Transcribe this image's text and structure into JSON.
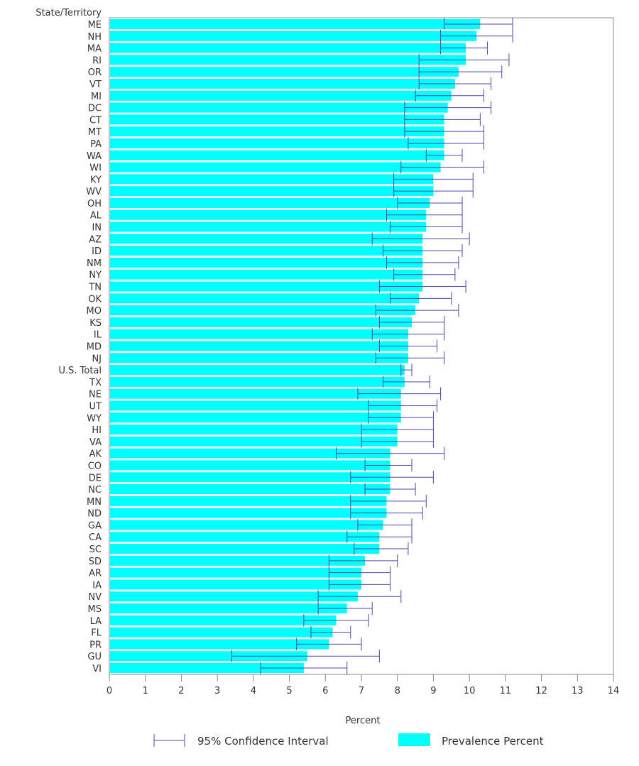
{
  "chart_data": {
    "type": "bar",
    "orientation": "horizontal",
    "category_header": "State/Territory",
    "xlabel": "Percent",
    "xlim": [
      0,
      14
    ],
    "xticks": [
      "0",
      "1",
      "2",
      "3",
      "4",
      "5",
      "6",
      "7",
      "8",
      "9",
      "10",
      "11",
      "12",
      "13",
      "14"
    ],
    "legend": {
      "ci_label": "95% Confidence Interval",
      "bar_label": "Prevalence Percent",
      "placement": "bottom"
    },
    "colors": {
      "bar": "#00ffff",
      "ci": "#4a4aa8",
      "axis": "#888888"
    },
    "categories": [
      "ME",
      "NH",
      "MA",
      "RI",
      "OR",
      "VT",
      "MI",
      "DC",
      "CT",
      "MT",
      "PA",
      "WA",
      "WI",
      "KY",
      "WV",
      "OH",
      "AL",
      "IN",
      "AZ",
      "ID",
      "NM",
      "NY",
      "TN",
      "OK",
      "MO",
      "KS",
      "IL",
      "MD",
      "NJ",
      "U.S. Total",
      "TX",
      "NE",
      "UT",
      "WY",
      "HI",
      "VA",
      "AK",
      "CO",
      "DE",
      "NC",
      "MN",
      "ND",
      "GA",
      "CA",
      "SC",
      "SD",
      "AR",
      "IA",
      "NV",
      "MS",
      "LA",
      "FL",
      "PR",
      "GU",
      "VI"
    ],
    "series": [
      {
        "name": "Prevalence Percent",
        "values": [
          10.3,
          10.2,
          9.9,
          9.9,
          9.7,
          9.6,
          9.5,
          9.4,
          9.3,
          9.3,
          9.3,
          9.3,
          9.2,
          9.0,
          9.0,
          8.9,
          8.8,
          8.8,
          8.7,
          8.7,
          8.7,
          8.7,
          8.7,
          8.6,
          8.5,
          8.4,
          8.3,
          8.3,
          8.3,
          8.2,
          8.2,
          8.1,
          8.1,
          8.1,
          8.0,
          8.0,
          7.8,
          7.8,
          7.8,
          7.8,
          7.7,
          7.7,
          7.6,
          7.5,
          7.5,
          7.1,
          7.0,
          7.0,
          6.9,
          6.6,
          6.3,
          6.2,
          6.1,
          5.5,
          5.4
        ]
      },
      {
        "name": "CI Lower",
        "values": [
          9.3,
          9.2,
          9.2,
          8.6,
          8.6,
          8.6,
          8.5,
          8.2,
          8.2,
          8.2,
          8.3,
          8.8,
          8.1,
          7.9,
          7.9,
          8.0,
          7.7,
          7.8,
          7.3,
          7.6,
          7.7,
          7.9,
          7.5,
          7.8,
          7.4,
          7.5,
          7.3,
          7.5,
          7.4,
          8.1,
          7.6,
          6.9,
          7.2,
          7.2,
          7.0,
          7.0,
          6.3,
          7.1,
          6.7,
          7.1,
          6.7,
          6.7,
          6.9,
          6.6,
          6.8,
          6.1,
          6.1,
          6.1,
          5.8,
          5.8,
          5.4,
          5.6,
          5.2,
          3.4,
          4.2
        ]
      },
      {
        "name": "CI Upper",
        "values": [
          11.2,
          11.2,
          10.5,
          11.1,
          10.9,
          10.6,
          10.4,
          10.6,
          10.3,
          10.4,
          10.4,
          9.8,
          10.4,
          10.1,
          10.1,
          9.8,
          9.8,
          9.8,
          10.0,
          9.8,
          9.7,
          9.6,
          9.9,
          9.5,
          9.7,
          9.3,
          9.3,
          9.1,
          9.3,
          8.4,
          8.9,
          9.2,
          9.1,
          9.0,
          9.0,
          9.0,
          9.3,
          8.4,
          9.0,
          8.5,
          8.8,
          8.7,
          8.4,
          8.4,
          8.3,
          8.0,
          7.8,
          7.8,
          8.1,
          7.3,
          7.2,
          6.7,
          7.0,
          7.5,
          6.6
        ]
      }
    ]
  }
}
